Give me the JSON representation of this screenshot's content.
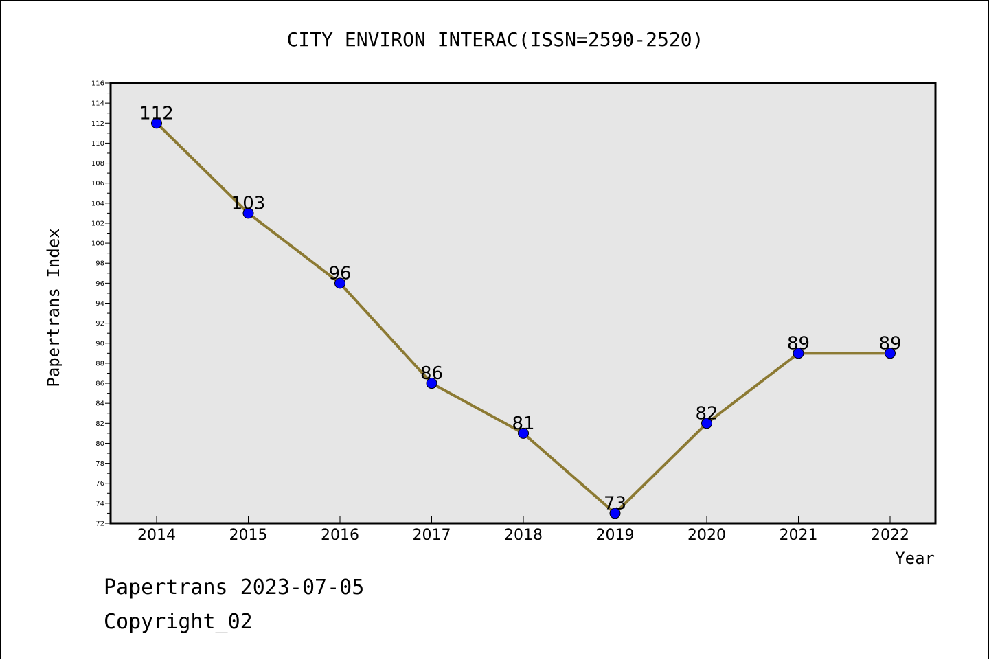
{
  "chart_data": {
    "type": "line",
    "title": "CITY ENVIRON INTERAC(ISSN=2590-2520)",
    "xlabel": "Year",
    "ylabel": "Papertrans Index",
    "categories": [
      "2014",
      "2015",
      "2016",
      "2017",
      "2018",
      "2019",
      "2020",
      "2021",
      "2022"
    ],
    "series": [
      {
        "values": [
          112,
          103,
          96,
          86,
          81,
          73,
          82,
          89,
          89
        ]
      }
    ],
    "data_labels": [
      "112",
      "103",
      "96",
      "86",
      "81",
      "73",
      "82",
      "89",
      "89"
    ],
    "ylim": [
      72,
      116
    ],
    "y_ticks": [
      "72",
      "74",
      "76",
      "78",
      "80",
      "82",
      "84",
      "86",
      "88",
      "90",
      "92",
      "94",
      "96",
      "98",
      "100",
      "102",
      "104",
      "106",
      "108",
      "110",
      "112",
      "114",
      "116"
    ],
    "grid": false,
    "colors": {
      "line": "#8c7a33",
      "marker": "#0000ff",
      "plot_background": "#e6e6e6",
      "axis": "#000000"
    }
  },
  "footer": {
    "line1": "Papertrans 2023-07-05",
    "line2": "Copyright_02"
  }
}
